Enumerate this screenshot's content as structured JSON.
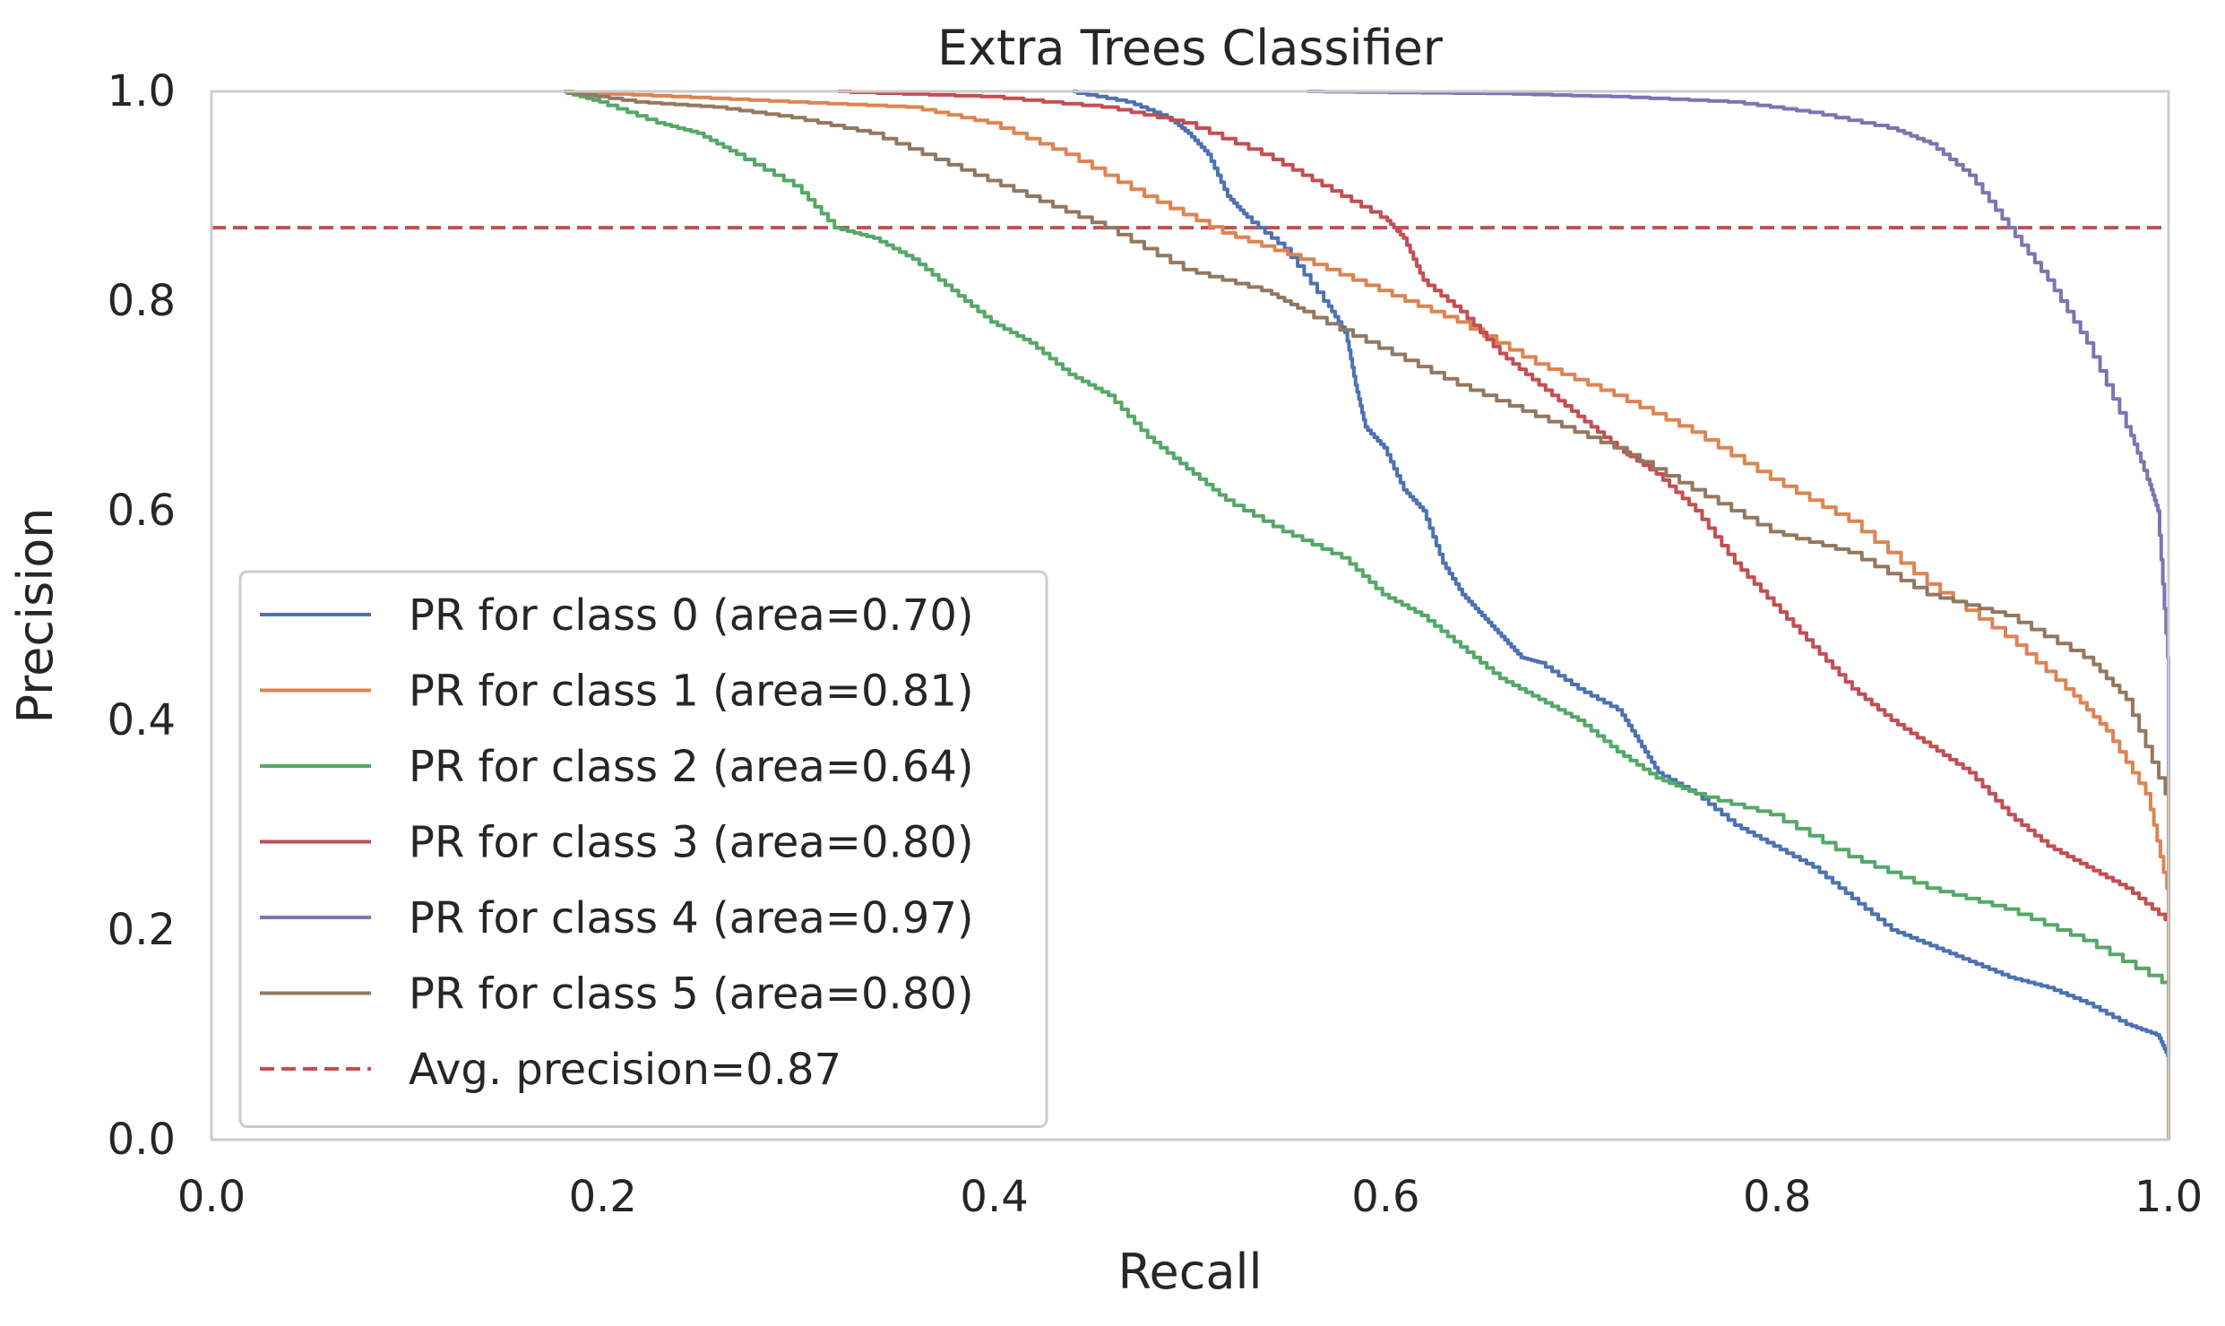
{
  "chart_data": {
    "type": "line",
    "title": "Extra Trees Classifier",
    "xlabel": "Recall",
    "ylabel": "Precision",
    "xlim": [
      0.0,
      1.0
    ],
    "ylim": [
      0.0,
      1.0
    ],
    "xticks": [
      "0.0",
      "0.2",
      "0.4",
      "0.6",
      "0.8",
      "1.0"
    ],
    "yticks": [
      "0.0",
      "0.2",
      "0.4",
      "0.6",
      "0.8",
      "1.0"
    ],
    "grid": false,
    "legend_position": "lower-left",
    "series": [
      {
        "name": "PR for class 0 (area=0.70)",
        "color": "#4c72b0",
        "points": [
          [
            0.44,
            1.0
          ],
          [
            0.47,
            0.99
          ],
          [
            0.49,
            0.975
          ],
          [
            0.5,
            0.96
          ],
          [
            0.51,
            0.94
          ],
          [
            0.52,
            0.9
          ],
          [
            0.53,
            0.88
          ],
          [
            0.55,
            0.85
          ],
          [
            0.57,
            0.8
          ],
          [
            0.58,
            0.77
          ],
          [
            0.585,
            0.72
          ],
          [
            0.59,
            0.68
          ],
          [
            0.6,
            0.66
          ],
          [
            0.61,
            0.62
          ],
          [
            0.62,
            0.6
          ],
          [
            0.63,
            0.55
          ],
          [
            0.64,
            0.52
          ],
          [
            0.65,
            0.5
          ],
          [
            0.66,
            0.48
          ],
          [
            0.67,
            0.46
          ],
          [
            0.68,
            0.455
          ],
          [
            0.7,
            0.43
          ],
          [
            0.72,
            0.41
          ],
          [
            0.73,
            0.38
          ],
          [
            0.74,
            0.35
          ],
          [
            0.76,
            0.33
          ],
          [
            0.78,
            0.3
          ],
          [
            0.8,
            0.28
          ],
          [
            0.82,
            0.26
          ],
          [
            0.84,
            0.23
          ],
          [
            0.86,
            0.2
          ],
          [
            0.88,
            0.185
          ],
          [
            0.9,
            0.17
          ],
          [
            0.92,
            0.155
          ],
          [
            0.94,
            0.145
          ],
          [
            0.96,
            0.13
          ],
          [
            0.98,
            0.11
          ],
          [
            0.995,
            0.1
          ],
          [
            1.0,
            0.08
          ]
        ]
      },
      {
        "name": "PR for class 1 (area=0.81)",
        "color": "#dd8452",
        "points": [
          [
            0.18,
            1.0
          ],
          [
            0.24,
            0.995
          ],
          [
            0.3,
            0.99
          ],
          [
            0.36,
            0.985
          ],
          [
            0.4,
            0.97
          ],
          [
            0.44,
            0.94
          ],
          [
            0.48,
            0.9
          ],
          [
            0.52,
            0.865
          ],
          [
            0.56,
            0.84
          ],
          [
            0.6,
            0.81
          ],
          [
            0.64,
            0.78
          ],
          [
            0.68,
            0.74
          ],
          [
            0.72,
            0.71
          ],
          [
            0.76,
            0.675
          ],
          [
            0.8,
            0.63
          ],
          [
            0.84,
            0.59
          ],
          [
            0.88,
            0.53
          ],
          [
            0.92,
            0.48
          ],
          [
            0.95,
            0.43
          ],
          [
            0.97,
            0.39
          ],
          [
            0.99,
            0.33
          ],
          [
            1.0,
            0.24
          ]
        ]
      },
      {
        "name": "PR for class 2 (area=0.64)",
        "color": "#55a868",
        "points": [
          [
            0.18,
            1.0
          ],
          [
            0.2,
            0.99
          ],
          [
            0.23,
            0.97
          ],
          [
            0.25,
            0.96
          ],
          [
            0.27,
            0.94
          ],
          [
            0.3,
            0.91
          ],
          [
            0.32,
            0.87
          ],
          [
            0.34,
            0.86
          ],
          [
            0.36,
            0.84
          ],
          [
            0.38,
            0.81
          ],
          [
            0.4,
            0.78
          ],
          [
            0.42,
            0.76
          ],
          [
            0.44,
            0.73
          ],
          [
            0.46,
            0.71
          ],
          [
            0.48,
            0.67
          ],
          [
            0.5,
            0.64
          ],
          [
            0.52,
            0.61
          ],
          [
            0.55,
            0.58
          ],
          [
            0.58,
            0.555
          ],
          [
            0.6,
            0.52
          ],
          [
            0.62,
            0.5
          ],
          [
            0.64,
            0.47
          ],
          [
            0.66,
            0.44
          ],
          [
            0.68,
            0.42
          ],
          [
            0.7,
            0.4
          ],
          [
            0.72,
            0.37
          ],
          [
            0.74,
            0.345
          ],
          [
            0.76,
            0.33
          ],
          [
            0.8,
            0.31
          ],
          [
            0.84,
            0.27
          ],
          [
            0.88,
            0.24
          ],
          [
            0.92,
            0.22
          ],
          [
            0.96,
            0.19
          ],
          [
            1.0,
            0.15
          ]
        ]
      },
      {
        "name": "PR for class 3 (area=0.80)",
        "color": "#c44e52",
        "points": [
          [
            0.32,
            1.0
          ],
          [
            0.4,
            0.995
          ],
          [
            0.46,
            0.985
          ],
          [
            0.5,
            0.97
          ],
          [
            0.54,
            0.94
          ],
          [
            0.57,
            0.91
          ],
          [
            0.6,
            0.88
          ],
          [
            0.61,
            0.86
          ],
          [
            0.62,
            0.82
          ],
          [
            0.64,
            0.79
          ],
          [
            0.66,
            0.75
          ],
          [
            0.68,
            0.72
          ],
          [
            0.7,
            0.69
          ],
          [
            0.72,
            0.66
          ],
          [
            0.74,
            0.635
          ],
          [
            0.76,
            0.6
          ],
          [
            0.78,
            0.55
          ],
          [
            0.8,
            0.51
          ],
          [
            0.82,
            0.47
          ],
          [
            0.84,
            0.43
          ],
          [
            0.86,
            0.4
          ],
          [
            0.88,
            0.375
          ],
          [
            0.9,
            0.35
          ],
          [
            0.92,
            0.31
          ],
          [
            0.94,
            0.28
          ],
          [
            0.96,
            0.26
          ],
          [
            0.98,
            0.24
          ],
          [
            1.0,
            0.21
          ]
        ]
      },
      {
        "name": "PR for class 4 (area=0.97)",
        "color": "#8172b2",
        "points": [
          [
            0.56,
            1.0
          ],
          [
            0.66,
            0.998
          ],
          [
            0.72,
            0.995
          ],
          [
            0.78,
            0.99
          ],
          [
            0.82,
            0.98
          ],
          [
            0.86,
            0.965
          ],
          [
            0.88,
            0.95
          ],
          [
            0.9,
            0.92
          ],
          [
            0.92,
            0.87
          ],
          [
            0.94,
            0.82
          ],
          [
            0.96,
            0.76
          ],
          [
            0.98,
            0.68
          ],
          [
            0.99,
            0.63
          ],
          [
            0.995,
            0.6
          ],
          [
            1.0,
            0.46
          ]
        ]
      },
      {
        "name": "PR for class 5 (area=0.80)",
        "color": "#937860",
        "points": [
          [
            0.18,
            1.0
          ],
          [
            0.22,
            0.99
          ],
          [
            0.26,
            0.985
          ],
          [
            0.3,
            0.975
          ],
          [
            0.34,
            0.96
          ],
          [
            0.38,
            0.93
          ],
          [
            0.42,
            0.9
          ],
          [
            0.46,
            0.87
          ],
          [
            0.5,
            0.83
          ],
          [
            0.54,
            0.81
          ],
          [
            0.56,
            0.79
          ],
          [
            0.6,
            0.755
          ],
          [
            0.64,
            0.72
          ],
          [
            0.68,
            0.69
          ],
          [
            0.72,
            0.66
          ],
          [
            0.76,
            0.62
          ],
          [
            0.8,
            0.58
          ],
          [
            0.84,
            0.56
          ],
          [
            0.88,
            0.52
          ],
          [
            0.92,
            0.5
          ],
          [
            0.96,
            0.46
          ],
          [
            0.98,
            0.42
          ],
          [
            1.0,
            0.33
          ]
        ]
      }
    ],
    "reference_line": {
      "name": "Avg. precision=0.87",
      "y": 0.87,
      "color": "#c44e52",
      "style": "dashed"
    }
  }
}
